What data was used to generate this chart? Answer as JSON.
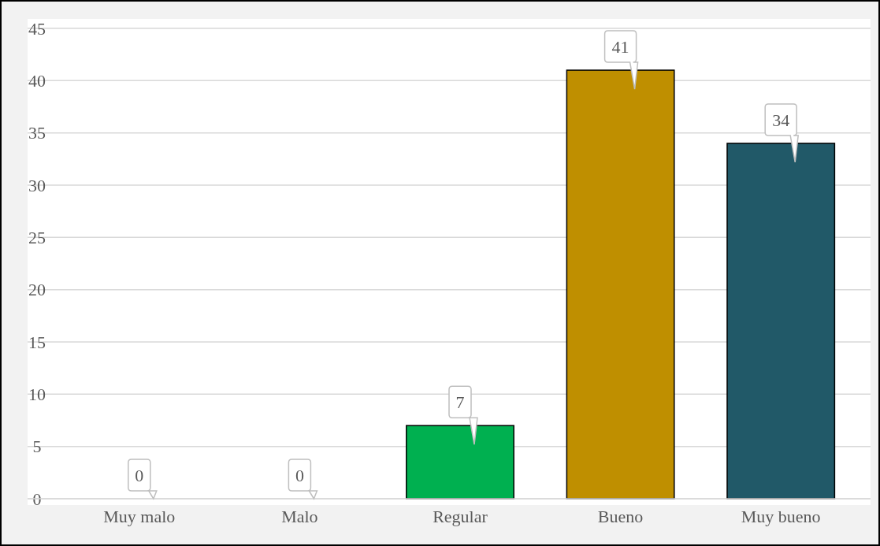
{
  "chart_data": {
    "type": "bar",
    "categories": [
      "Muy malo",
      "Malo",
      "Regular",
      "Bueno",
      "Muy bueno"
    ],
    "values": [
      0,
      0,
      7,
      41,
      34
    ],
    "colors": [
      null,
      null,
      "#00b050",
      "#bf8f00",
      "#215968"
    ],
    "ylim": [
      0,
      45
    ],
    "yticks": [
      0,
      5,
      10,
      15,
      20,
      25,
      30,
      35,
      40,
      45
    ],
    "grid": "y",
    "data_labels": true
  }
}
